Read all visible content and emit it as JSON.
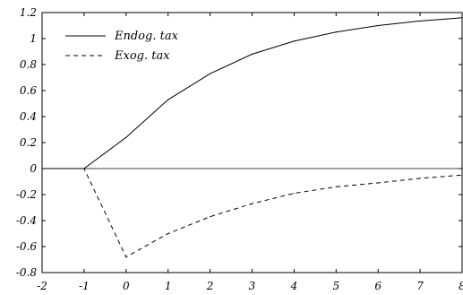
{
  "chart_data": {
    "type": "line",
    "title": "",
    "xlabel": "",
    "ylabel": "",
    "xlim": [
      -2,
      8
    ],
    "ylim": [
      -0.8,
      1.2
    ],
    "x_ticks": [
      "-2",
      "-1",
      "0",
      "1",
      "2",
      "3",
      "4",
      "5",
      "6",
      "7",
      "8"
    ],
    "y_ticks": [
      "1.2",
      "1",
      "0.8",
      "0.6",
      "0.4",
      "0.2",
      "0",
      "-0.2",
      "-0.4",
      "-0.6",
      "-0.8"
    ],
    "grid": false,
    "legend_position": "top-left",
    "zero_line": true,
    "x": [
      -2,
      -1,
      0,
      1,
      2,
      3,
      4,
      5,
      6,
      7,
      8
    ],
    "series": [
      {
        "name": "Endog. tax",
        "style": "solid",
        "color": "#000000",
        "values": [
          0,
          0,
          0.24,
          0.53,
          0.73,
          0.88,
          0.98,
          1.05,
          1.1,
          1.135,
          1.16
        ]
      },
      {
        "name": "Exog. tax",
        "style": "dashed",
        "color": "#000000",
        "values": [
          0,
          0,
          -0.68,
          -0.5,
          -0.37,
          -0.27,
          -0.19,
          -0.14,
          -0.11,
          -0.075,
          -0.05
        ]
      }
    ]
  }
}
